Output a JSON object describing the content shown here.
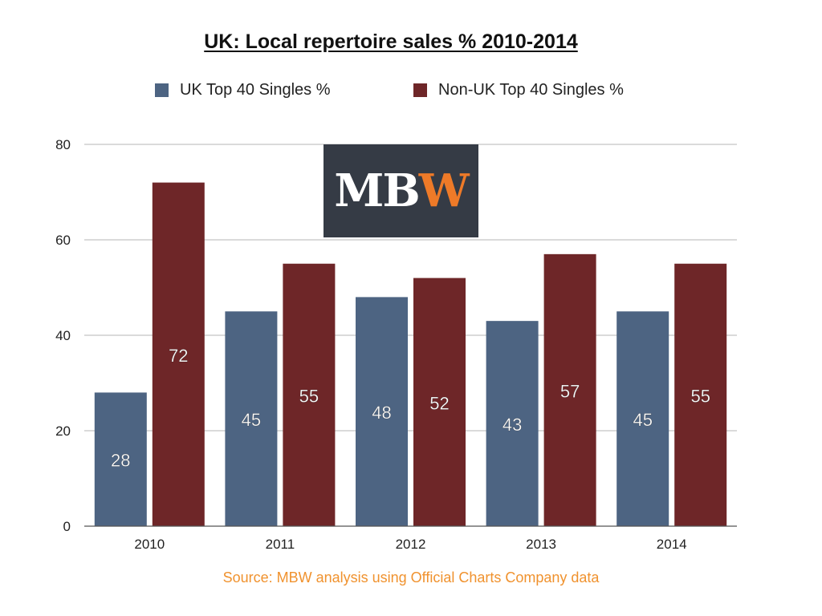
{
  "chart_data": {
    "type": "bar",
    "title": "UK: Local repertoire sales % 2010-2014",
    "categories": [
      "2010",
      "2011",
      "2012",
      "2013",
      "2014"
    ],
    "series": [
      {
        "name": "UK Top 40 Singles %",
        "values": [
          28,
          45,
          48,
          43,
          45
        ],
        "color": "#4d6482"
      },
      {
        "name": "Non-UK Top 40 Singles %",
        "values": [
          72,
          55,
          52,
          57,
          55
        ],
        "color": "#6e2628"
      }
    ],
    "ylim": [
      0,
      80
    ],
    "yticks": [
      "0",
      "20",
      "40",
      "60",
      "80"
    ],
    "grid": true,
    "legend_position": "top",
    "data_labels": true
  },
  "logo": {
    "text_white": "MB",
    "text_orange": "W"
  },
  "source": "Source: MBW analysis using Official Charts Company data"
}
